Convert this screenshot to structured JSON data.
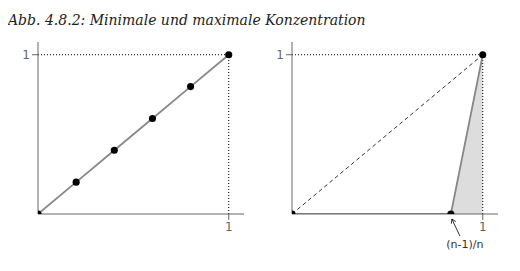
{
  "chart_data": [
    {
      "type": "line",
      "title": "Abb. 4.8.2: Minimale und maximale Konzentration",
      "xlim": [
        0,
        1.08
      ],
      "ylim": [
        0,
        1.08
      ],
      "xticks": [
        1
      ],
      "yticks": [
        1
      ],
      "series": [
        {
          "type": "line",
          "x": [
            0.0,
            1.0
          ],
          "values": [
            1,
            1
          ],
          "color": "#000000",
          "line_style": "dotted"
        },
        {
          "type": "line",
          "x": [
            1,
            1
          ],
          "values": [
            0,
            1
          ],
          "color": "#000000",
          "line_style": "dotted"
        },
        {
          "type": "line",
          "x": [
            0.0,
            0.2,
            0.4,
            0.6,
            0.8,
            1.0
          ],
          "values": [
            0.0,
            0.2,
            0.4,
            0.6,
            0.8,
            1.0
          ],
          "color": "#888888"
        },
        {
          "type": "scatter",
          "x": [
            0.0,
            0.2,
            0.4,
            0.6,
            0.8,
            1.0
          ],
          "values": [
            0.0,
            0.2,
            0.4,
            0.6,
            0.8,
            1.0
          ],
          "color": "#000000"
        }
      ]
    },
    {
      "type": "line",
      "xlim": [
        0,
        1.08
      ],
      "ylim": [
        0,
        1.08
      ],
      "xticks": [
        1
      ],
      "yticks": [
        1
      ],
      "series": [
        {
          "type": "area",
          "x": [
            0.0,
            0.833,
            1.0
          ],
          "values": [
            0.0,
            0.0,
            1.0
          ],
          "color": "#dddddd"
        },
        {
          "type": "line",
          "x": [
            0.0,
            1.0
          ],
          "values": [
            1,
            1
          ],
          "color": "#000000",
          "line_style": "dotted"
        },
        {
          "type": "line",
          "x": [
            1,
            1
          ],
          "values": [
            0,
            1
          ],
          "color": "#000000",
          "line_style": "dotted"
        },
        {
          "type": "line",
          "x": [
            0.0,
            1.0
          ],
          "values": [
            0.0,
            1.0
          ],
          "color": "#333333",
          "line_style": "dashed"
        },
        {
          "type": "line",
          "x": [
            0.0,
            0.833,
            1.0
          ],
          "values": [
            0.0,
            0.0,
            1.0
          ],
          "color": "#888888"
        },
        {
          "type": "scatter",
          "x": [
            0.0,
            0.833,
            1.0
          ],
          "values": [
            0.0,
            0.0,
            1.0
          ],
          "color": "#000000"
        }
      ],
      "annotations": [
        {
          "text": "(n-1)/n",
          "x": 0.833,
          "y": 0.0
        }
      ]
    }
  ]
}
